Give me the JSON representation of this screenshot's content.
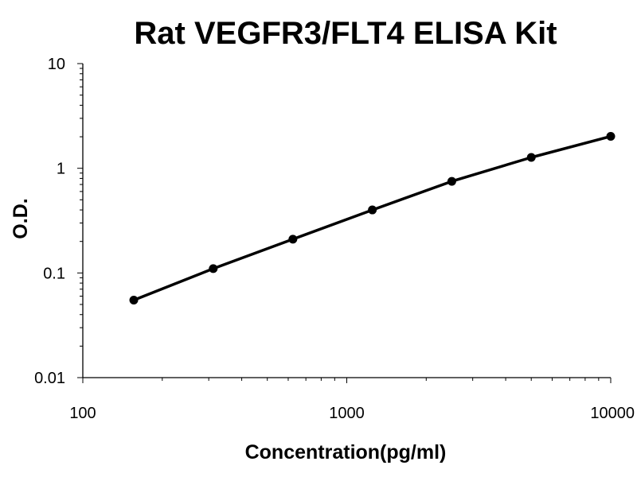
{
  "chart_data": {
    "type": "line",
    "title": "Rat VEGFR3/FLT4 ELISA Kit",
    "xlabel": "Concentration(pg/ml)",
    "ylabel": "O.D.",
    "x_scale": "log",
    "y_scale": "log",
    "xlim": [
      100,
      10000
    ],
    "ylim": [
      0.01,
      10
    ],
    "x_tick_labels": [
      "100",
      "1000",
      "10000"
    ],
    "y_tick_labels": [
      "10",
      "1",
      "0.1",
      "0.01"
    ],
    "grid": false,
    "legend": "none",
    "series": [
      {
        "color": "#000000",
        "x": [
          156,
          312,
          625,
          1250,
          2500,
          5000,
          10000
        ],
        "y": [
          0.055,
          0.11,
          0.21,
          0.4,
          0.75,
          1.27,
          2.02
        ]
      }
    ]
  }
}
